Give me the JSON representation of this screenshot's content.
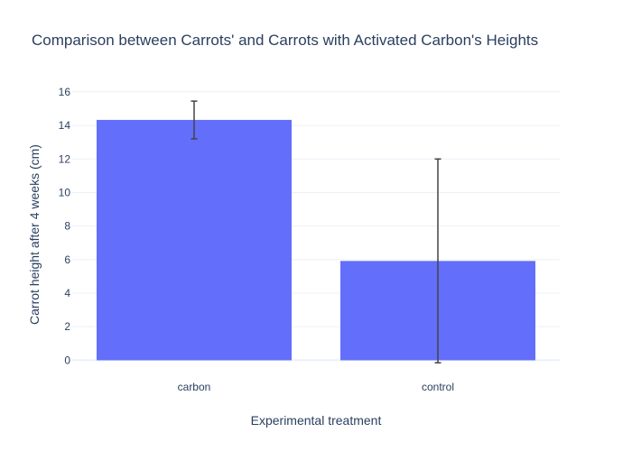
{
  "chart_data": {
    "type": "bar",
    "title": "Comparison between Carrots' and Carrots with Activated Carbon's Heights",
    "xlabel": "Experimental treatment",
    "ylabel": "Carrot height after 4 weeks (cm)",
    "categories": [
      "carbon",
      "control"
    ],
    "values": [
      14.33,
      5.92
    ],
    "error_low": [
      13.2,
      -0.15
    ],
    "error_high": [
      15.45,
      12.0
    ],
    "ylim": [
      -0.3,
      16.8
    ],
    "yticks": [
      0,
      2,
      4,
      6,
      8,
      10,
      12,
      14,
      16
    ],
    "grid": true,
    "bar_color": "#636efa",
    "error_bar_color": "#444444"
  }
}
